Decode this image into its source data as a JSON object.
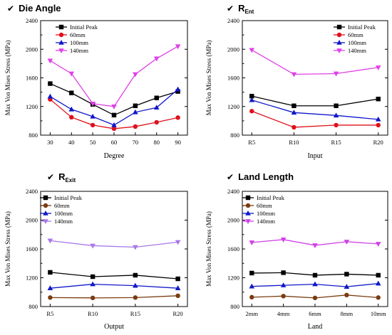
{
  "chart_data": [
    {
      "type": "line",
      "title": "Die Angle",
      "title_sub": "",
      "xlabel": "Degree",
      "ylabel": "Max Von Mises Stress (MPa)",
      "categories": [
        "30",
        "40",
        "50",
        "60",
        "70",
        "80",
        "90"
      ],
      "ylim": [
        800,
        2400
      ],
      "yticks": [
        800,
        1200,
        1600,
        2000,
        2400
      ],
      "legend_position": "top-left",
      "series": [
        {
          "name": "Initial Peak",
          "color": "#000000",
          "marker": "square",
          "values": [
            1520,
            1390,
            1230,
            1080,
            1210,
            1320,
            1410
          ]
        },
        {
          "name": "60mm",
          "color": "#e0101a",
          "marker": "circle",
          "values": [
            1300,
            1050,
            940,
            890,
            920,
            980,
            1045
          ]
        },
        {
          "name": "100mm",
          "color": "#1018c8",
          "marker": "triangle-up",
          "values": [
            1340,
            1160,
            1060,
            940,
            1120,
            1185,
            1440
          ]
        },
        {
          "name": "140mm",
          "color": "#e040e8",
          "marker": "triangle-down",
          "values": [
            1840,
            1660,
            1240,
            1200,
            1650,
            1870,
            2040
          ]
        }
      ]
    },
    {
      "type": "line",
      "title": "R",
      "title_sub": "Ent",
      "xlabel": "Input",
      "ylabel": "Max Von Mises Stress (MPa)",
      "categories": [
        "R5",
        "R10",
        "R15",
        "R20"
      ],
      "ylim": [
        800,
        2400
      ],
      "yticks": [
        800,
        1200,
        1600,
        2000,
        2400
      ],
      "legend_position": "top-right",
      "series": [
        {
          "name": "Initial Peak",
          "color": "#000000",
          "marker": "square",
          "values": [
            1345,
            1210,
            1210,
            1305
          ]
        },
        {
          "name": "60mm",
          "color": "#e0101a",
          "marker": "circle",
          "values": [
            1135,
            910,
            940,
            940
          ]
        },
        {
          "name": "100mm",
          "color": "#1018c8",
          "marker": "triangle-up",
          "values": [
            1290,
            1115,
            1075,
            1020
          ]
        },
        {
          "name": "140mm",
          "color": "#e040e8",
          "marker": "triangle-down",
          "values": [
            1990,
            1650,
            1660,
            1745
          ]
        }
      ]
    },
    {
      "type": "line",
      "title": "R",
      "title_sub": "Exit",
      "xlabel": "Output",
      "ylabel": "Max Von Mises Stress (MPa)",
      "categories": [
        "R5",
        "R10",
        "R15",
        "R20"
      ],
      "ylim": [
        800,
        2400
      ],
      "yticks": [
        800,
        1200,
        1600,
        2000,
        2400
      ],
      "legend_position": "top-left",
      "series": [
        {
          "name": "Initial Peak",
          "color": "#000000",
          "marker": "square",
          "values": [
            1275,
            1215,
            1235,
            1185
          ]
        },
        {
          "name": "60mm",
          "color": "#7a3b10",
          "marker": "circle",
          "values": [
            925,
            920,
            925,
            950
          ]
        },
        {
          "name": "100mm",
          "color": "#1018c8",
          "marker": "triangle-up",
          "values": [
            1055,
            1110,
            1090,
            1055
          ]
        },
        {
          "name": "140mm",
          "color": "#a878e8",
          "marker": "triangle-down",
          "values": [
            1715,
            1645,
            1625,
            1695
          ]
        }
      ]
    },
    {
      "type": "line",
      "title": "Land Length",
      "title_sub": "",
      "xlabel": "Land",
      "ylabel": "Max Von Mises Stress (MPa)",
      "categories": [
        "2mm",
        "4mm",
        "6mm",
        "8mm",
        "10mm"
      ],
      "ylim": [
        800,
        2400
      ],
      "yticks": [
        800,
        1200,
        1600,
        2000,
        2400
      ],
      "legend_position": "top-left",
      "series": [
        {
          "name": "Initial Peak",
          "color": "#000000",
          "marker": "square",
          "values": [
            1265,
            1270,
            1235,
            1250,
            1235
          ]
        },
        {
          "name": "60mm",
          "color": "#7a3b10",
          "marker": "circle",
          "values": [
            930,
            945,
            920,
            960,
            925
          ]
        },
        {
          "name": "100mm",
          "color": "#1018c8",
          "marker": "triangle-up",
          "values": [
            1080,
            1095,
            1110,
            1075,
            1120
          ]
        },
        {
          "name": "140mm",
          "color": "#d040e8",
          "marker": "triangle-down",
          "values": [
            1690,
            1730,
            1650,
            1700,
            1670
          ]
        }
      ]
    }
  ]
}
